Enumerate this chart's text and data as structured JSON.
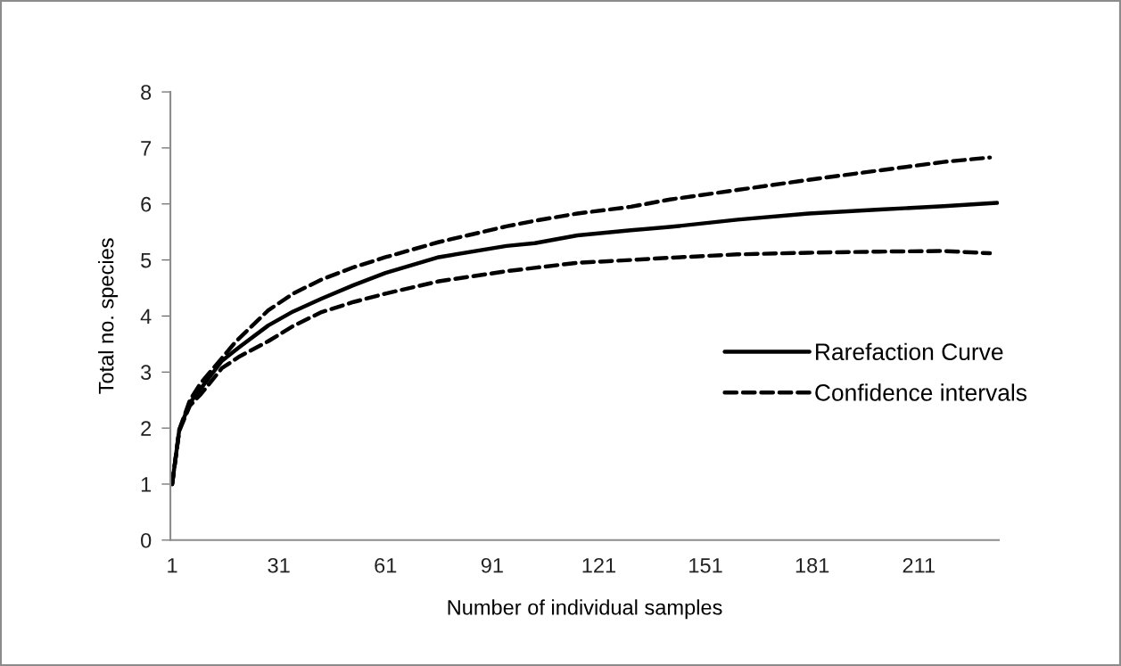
{
  "chart_data": {
    "type": "line",
    "xlabel": "Number of individual samples",
    "ylabel": "Total no. species",
    "xlim": [
      0.5,
      233.5
    ],
    "xticks": [
      1,
      31,
      61,
      91,
      121,
      151,
      181,
      211
    ],
    "ylim": [
      0,
      8
    ],
    "yticks": [
      0,
      1,
      2,
      3,
      4,
      5,
      6,
      7,
      8
    ],
    "grid": false,
    "legend": "right",
    "marker": "none",
    "series": [
      {
        "name": "Rarefaction Curve",
        "color": "#000000",
        "line_style": "solid",
        "x": [
          1,
          3,
          6,
          9,
          15,
          20,
          28,
          35,
          43,
          52,
          61,
          76,
          95,
          103,
          115,
          130,
          141,
          160,
          180,
          200,
          218,
          233
        ],
        "values": [
          1,
          1.97,
          2.45,
          2.7,
          3.2,
          3.45,
          3.83,
          4.08,
          4.31,
          4.55,
          4.77,
          5.05,
          5.25,
          5.3,
          5.44,
          5.53,
          5.59,
          5.72,
          5.83,
          5.9,
          5.96,
          6.02
        ]
      },
      {
        "name": "Confidence intervals",
        "color": "#000000",
        "line_style": "dashed",
        "x": [
          1,
          3,
          6,
          9,
          15,
          19,
          28,
          35,
          43,
          52,
          61,
          76,
          95,
          103,
          115,
          130,
          141,
          160,
          180,
          200,
          218,
          231
        ],
        "values": [
          1,
          1.97,
          2.5,
          2.8,
          3.25,
          3.55,
          4.1,
          4.4,
          4.65,
          4.87,
          5.05,
          5.32,
          5.6,
          5.7,
          5.83,
          5.95,
          6.08,
          6.25,
          6.43,
          6.6,
          6.75,
          6.83
        ]
      },
      {
        "color": "#000000",
        "line_style": "dashed",
        "x": [
          1,
          3,
          6,
          9,
          15,
          20,
          28,
          35,
          43,
          52,
          61,
          76,
          95,
          103,
          115,
          130,
          141,
          160,
          180,
          200,
          218,
          231
        ],
        "values": [
          1,
          1.95,
          2.4,
          2.6,
          3.07,
          3.28,
          3.55,
          3.82,
          4.07,
          4.25,
          4.4,
          4.62,
          4.8,
          4.86,
          4.95,
          5.0,
          5.04,
          5.1,
          5.13,
          5.15,
          5.16,
          5.12
        ]
      }
    ]
  }
}
